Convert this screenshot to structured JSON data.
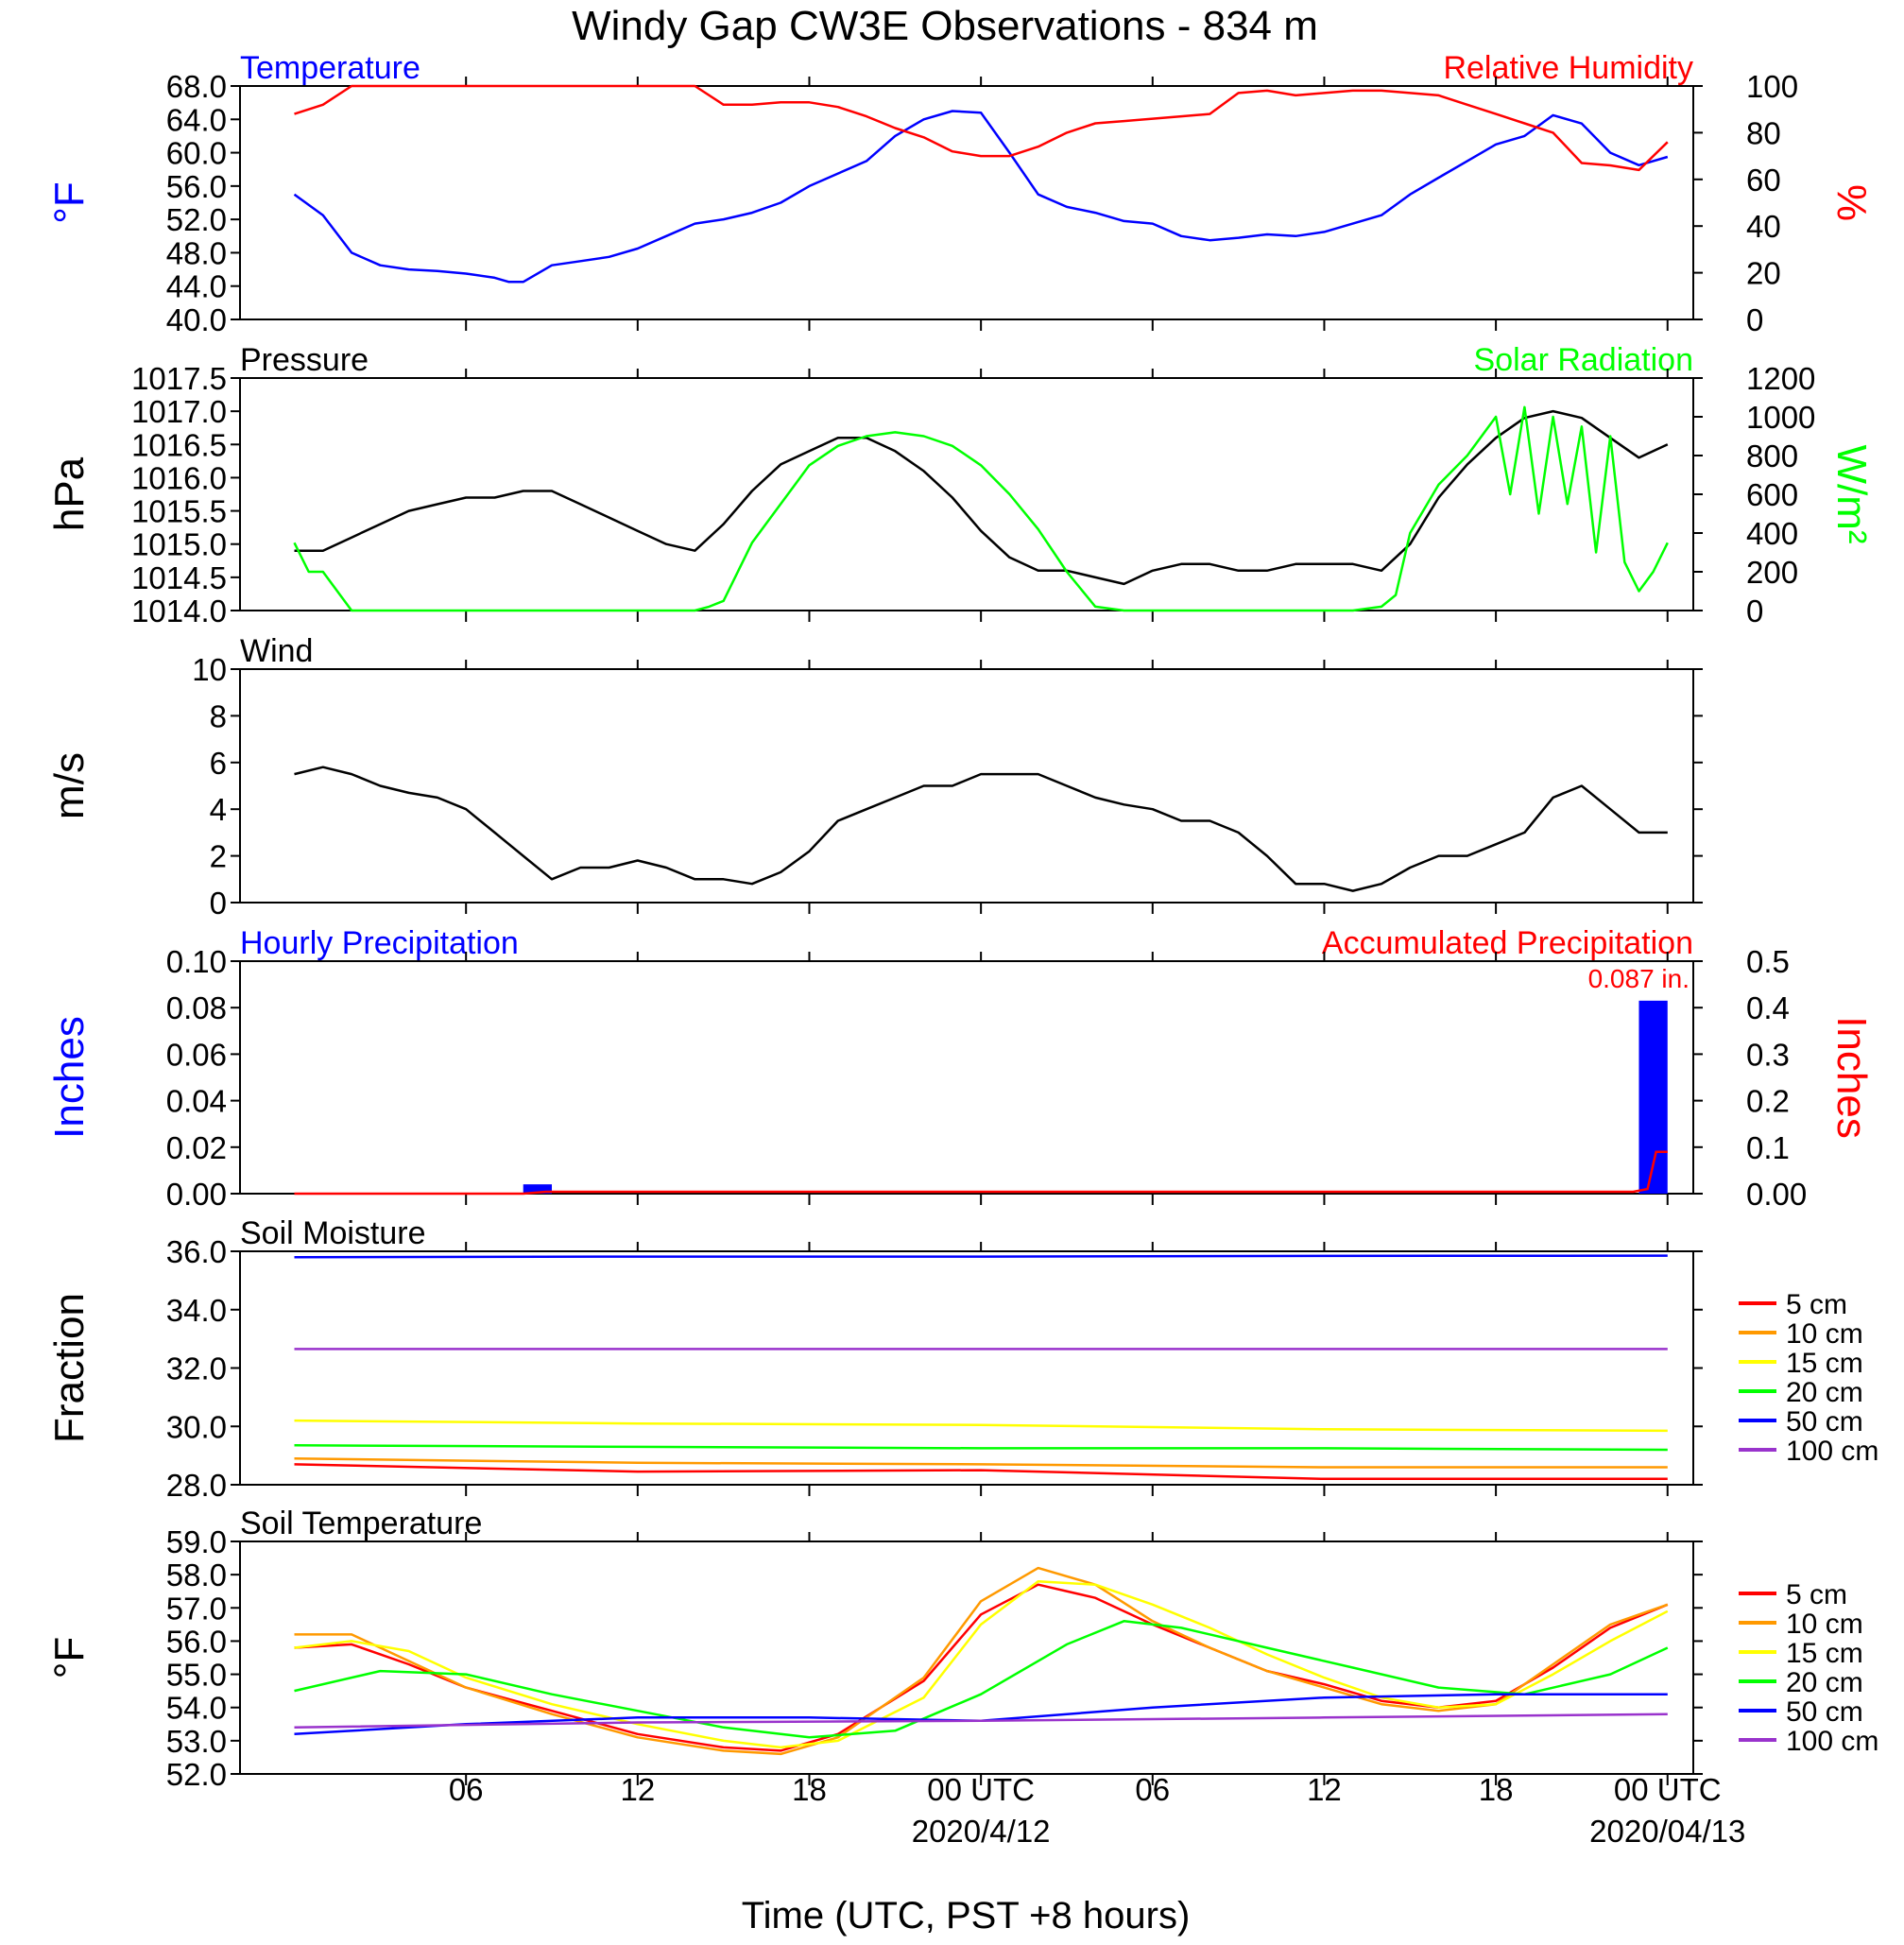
{
  "title": "Windy Gap CW3E Observations - 834 m",
  "xaxis": {
    "title": "Time (UTC, PST +8 hours)",
    "tick_labels": [
      "06",
      "12",
      "18",
      "00 UTC",
      "06",
      "12",
      "18",
      "00 UTC"
    ],
    "date_labels": [
      "2020/4/12",
      "2020/04/13"
    ]
  },
  "chart_data": [
    {
      "type": "line",
      "panel": "temperature_humidity",
      "x_range_hours": [
        0,
        48
      ],
      "left": {
        "label": "Temperature",
        "ylabel": "°F",
        "color": "#0000ff",
        "ylim": [
          40,
          68
        ],
        "ticks": [
          "40.0",
          "44.0",
          "48.0",
          "52.0",
          "56.0",
          "60.0",
          "64.0",
          "68.0"
        ]
      },
      "right": {
        "label": "Relative Humidity",
        "ylabel": "%",
        "color": "#ff0000",
        "ylim": [
          0,
          100
        ],
        "ticks": [
          "0",
          "20",
          "40",
          "60",
          "80",
          "100"
        ]
      },
      "series": [
        {
          "name": "Temperature",
          "axis": "left",
          "color": "#0000ff",
          "x": [
            0,
            1,
            2,
            3,
            4,
            5,
            6,
            7,
            7.5,
            8,
            9,
            10,
            11,
            12,
            13,
            14,
            15,
            16,
            17,
            18,
            19,
            20,
            21,
            22,
            23,
            24,
            25,
            26,
            27,
            28,
            29,
            30,
            31,
            32,
            33,
            34,
            35,
            36,
            37,
            38,
            39,
            40,
            41,
            42,
            43,
            44,
            45,
            46,
            47,
            48
          ],
          "y": [
            55,
            52.5,
            48,
            46.5,
            46,
            45.8,
            45.5,
            45,
            44.5,
            44.5,
            46.5,
            47,
            47.5,
            48.5,
            50,
            51.5,
            52,
            52.8,
            54,
            56,
            57.5,
            59,
            62,
            64,
            65,
            64.8,
            60,
            55,
            53.5,
            52.8,
            51.8,
            51.5,
            50,
            49.5,
            49.8,
            50.2,
            50,
            50.5,
            51.5,
            52.5,
            55,
            57,
            59,
            61,
            62,
            64.5,
            63.5,
            60,
            58.5,
            59.5
          ]
        },
        {
          "name": "Relative Humidity",
          "axis": "right",
          "color": "#ff0000",
          "x": [
            0,
            1,
            2,
            3,
            4,
            5,
            6,
            7,
            8,
            9,
            10,
            11,
            12,
            13,
            14,
            15,
            16,
            17,
            18,
            19,
            20,
            21,
            22,
            23,
            24,
            25,
            26,
            27,
            28,
            29,
            30,
            31,
            32,
            33,
            34,
            35,
            36,
            37,
            38,
            39,
            40,
            41,
            42,
            43,
            44,
            45,
            46,
            47,
            48
          ],
          "y": [
            88,
            92,
            100,
            100,
            100,
            100,
            100,
            100,
            100,
            100,
            100,
            100,
            100,
            100,
            100,
            92,
            92,
            93,
            93,
            91,
            87,
            82,
            78,
            72,
            70,
            70,
            74,
            80,
            84,
            85,
            86,
            87,
            88,
            97,
            98,
            96,
            97,
            98,
            98,
            97,
            96,
            92,
            88,
            84,
            80,
            67,
            66,
            64,
            76
          ]
        }
      ]
    },
    {
      "type": "line",
      "panel": "pressure_solar",
      "x_range_hours": [
        0,
        48
      ],
      "left": {
        "label": "Pressure",
        "ylabel": "hPa",
        "color": "#000000",
        "ylim": [
          1014.0,
          1017.5
        ],
        "ticks": [
          "1014.0",
          "1014.5",
          "1015.0",
          "1015.5",
          "1016.0",
          "1016.5",
          "1017.0",
          "1017.5"
        ]
      },
      "right": {
        "label": "Solar Radiation",
        "ylabel": "W/m²",
        "color": "#00ff00",
        "ylim": [
          0,
          1200
        ],
        "ticks": [
          "0",
          "200",
          "400",
          "600",
          "800",
          "1000",
          "1200"
        ]
      },
      "series": [
        {
          "name": "Pressure",
          "axis": "left",
          "color": "#000000",
          "x": [
            0,
            1,
            2,
            3,
            4,
            5,
            6,
            7,
            8,
            9,
            10,
            11,
            12,
            13,
            14,
            15,
            16,
            17,
            18,
            19,
            20,
            21,
            22,
            23,
            24,
            25,
            26,
            27,
            28,
            29,
            30,
            31,
            32,
            33,
            34,
            35,
            36,
            37,
            38,
            39,
            40,
            41,
            42,
            43,
            44,
            45,
            46,
            47,
            48
          ],
          "y": [
            1014.9,
            1014.9,
            1015.1,
            1015.3,
            1015.5,
            1015.6,
            1015.7,
            1015.7,
            1015.8,
            1015.8,
            1015.6,
            1015.4,
            1015.2,
            1015.0,
            1014.9,
            1015.3,
            1015.8,
            1016.2,
            1016.4,
            1016.6,
            1016.6,
            1016.4,
            1016.1,
            1015.7,
            1015.2,
            1014.8,
            1014.6,
            1014.6,
            1014.5,
            1014.4,
            1014.6,
            1014.7,
            1014.7,
            1014.6,
            1014.6,
            1014.7,
            1014.7,
            1014.7,
            1014.6,
            1015.0,
            1015.7,
            1016.2,
            1016.6,
            1016.9,
            1017.0,
            1016.9,
            1016.6,
            1016.3,
            1016.5
          ]
        },
        {
          "name": "Solar Radiation",
          "axis": "right",
          "color": "#00ff00",
          "x": [
            0,
            0.5,
            1,
            2,
            3,
            6,
            9,
            12,
            14,
            14.5,
            15,
            16,
            17,
            18,
            19,
            20,
            21,
            22,
            23,
            24,
            25,
            26,
            27,
            28,
            29,
            30,
            33,
            36,
            37,
            38,
            38.5,
            39,
            40,
            41,
            41.5,
            42,
            42.5,
            43,
            43.5,
            44,
            44.5,
            45,
            45.5,
            46,
            46.5,
            47,
            47.5,
            48
          ],
          "y": [
            350,
            200,
            200,
            0,
            0,
            0,
            0,
            0,
            0,
            20,
            50,
            350,
            550,
            750,
            850,
            900,
            920,
            900,
            850,
            750,
            600,
            420,
            200,
            20,
            0,
            0,
            0,
            0,
            0,
            20,
            80,
            400,
            650,
            800,
            900,
            1000,
            600,
            1050,
            500,
            1000,
            550,
            950,
            300,
            900,
            250,
            100,
            200,
            350
          ]
        }
      ]
    },
    {
      "type": "line",
      "panel": "wind",
      "x_range_hours": [
        0,
        48
      ],
      "left": {
        "label": "Wind",
        "ylabel": "m/s",
        "color": "#000000",
        "ylim": [
          0,
          10
        ],
        "ticks": [
          "0",
          "2",
          "4",
          "6",
          "8",
          "10"
        ]
      },
      "series": [
        {
          "name": "Wind",
          "axis": "left",
          "color": "#000000",
          "x": [
            0,
            1,
            2,
            3,
            4,
            5,
            6,
            7,
            8,
            9,
            10,
            11,
            12,
            13,
            14,
            15,
            16,
            17,
            18,
            19,
            20,
            21,
            22,
            23,
            24,
            25,
            26,
            27,
            28,
            29,
            30,
            31,
            32,
            33,
            34,
            35,
            36,
            37,
            38,
            39,
            40,
            41,
            42,
            43,
            44,
            45,
            46,
            47,
            48
          ],
          "y": [
            5.5,
            5.8,
            5.5,
            5,
            4.7,
            4.5,
            4,
            3,
            2,
            1,
            1.5,
            1.5,
            1.8,
            1.5,
            1,
            1,
            0.8,
            1.3,
            2.2,
            3.5,
            4,
            4.5,
            5,
            5,
            5.5,
            5.5,
            5.5,
            5,
            4.5,
            4.2,
            4,
            3.5,
            3.5,
            3,
            2,
            0.8,
            0.8,
            0.5,
            0.8,
            1.5,
            2,
            2,
            2.5,
            3,
            4.5,
            5,
            4,
            3,
            3
          ]
        }
      ]
    },
    {
      "type": "bar",
      "panel": "precipitation",
      "x_range_hours": [
        0,
        48
      ],
      "left": {
        "label": "Hourly Precipitation",
        "ylabel": "Inches",
        "color": "#0000ff",
        "ylim": [
          0,
          0.1
        ],
        "ticks": [
          "0.00",
          "0.02",
          "0.04",
          "0.06",
          "0.08",
          "0.10"
        ]
      },
      "right": {
        "label": "Accumulated Precipitation",
        "ylabel": "Inches",
        "color": "#ff0000",
        "ylim": [
          0,
          0.5
        ],
        "ticks": [
          "0.00",
          "0.1",
          "0.2",
          "0.3",
          "0.4",
          "0.5"
        ]
      },
      "annotation": "0.087 in.",
      "bars": [
        {
          "hour": 8,
          "value": 0.004
        },
        {
          "hour": 47,
          "value": 0.083
        }
      ],
      "accumulated": {
        "x": [
          0,
          8,
          8.8,
          46.8,
          47.3,
          47.6,
          48
        ],
        "y": [
          0,
          0,
          0.004,
          0.004,
          0.01,
          0.09,
          0.09
        ]
      }
    },
    {
      "type": "line",
      "panel": "soil_moisture",
      "x_range_hours": [
        0,
        48
      ],
      "left": {
        "label": "Soil Moisture",
        "ylabel": "Fraction",
        "color": "#000000",
        "ylim": [
          28,
          36
        ],
        "ticks": [
          "28.0",
          "30.0",
          "32.0",
          "34.0",
          "36.0"
        ]
      },
      "series": [
        {
          "name": "5 cm",
          "color": "#ff0000",
          "x": [
            0,
            12,
            24,
            36,
            48
          ],
          "y": [
            28.7,
            28.45,
            28.5,
            28.2,
            28.2
          ]
        },
        {
          "name": "10 cm",
          "color": "#ff9900",
          "x": [
            0,
            12,
            24,
            36,
            48
          ],
          "y": [
            28.9,
            28.75,
            28.7,
            28.6,
            28.6
          ]
        },
        {
          "name": "15 cm",
          "color": "#ffff00",
          "x": [
            0,
            12,
            24,
            36,
            48
          ],
          "y": [
            30.2,
            30.1,
            30.05,
            29.9,
            29.85
          ]
        },
        {
          "name": "20 cm",
          "color": "#00ff00",
          "x": [
            0,
            12,
            24,
            36,
            48
          ],
          "y": [
            29.35,
            29.3,
            29.25,
            29.25,
            29.2
          ]
        },
        {
          "name": "50 cm",
          "color": "#0000ff",
          "x": [
            0,
            12,
            24,
            36,
            48
          ],
          "y": [
            35.8,
            35.82,
            35.82,
            35.84,
            35.85
          ]
        },
        {
          "name": "100 cm",
          "color": "#9933cc",
          "x": [
            0,
            12,
            24,
            36,
            48
          ],
          "y": [
            32.65,
            32.65,
            32.65,
            32.65,
            32.65
          ]
        }
      ]
    },
    {
      "type": "line",
      "panel": "soil_temperature",
      "x_range_hours": [
        0,
        48
      ],
      "left": {
        "label": "Soil Temperature",
        "ylabel": "°F",
        "color": "#000000",
        "ylim": [
          52,
          59
        ],
        "ticks": [
          "52.0",
          "53.0",
          "54.0",
          "55.0",
          "56.0",
          "57.0",
          "58.0",
          "59.0"
        ]
      },
      "series": [
        {
          "name": "5 cm",
          "color": "#ff0000",
          "x": [
            0,
            2,
            4,
            6,
            9,
            12,
            15,
            17,
            19,
            22,
            24,
            26,
            28,
            30,
            32,
            34,
            36,
            38,
            40,
            42,
            44,
            46,
            48
          ],
          "y": [
            55.8,
            55.9,
            55.3,
            54.6,
            53.9,
            53.2,
            52.8,
            52.7,
            53.2,
            54.8,
            56.8,
            57.7,
            57.3,
            56.5,
            55.8,
            55.1,
            54.7,
            54.2,
            54.0,
            54.2,
            55.2,
            56.4,
            57.1
          ]
        },
        {
          "name": "10 cm",
          "color": "#ff9900",
          "x": [
            0,
            2,
            4,
            6,
            9,
            12,
            15,
            17,
            19,
            22,
            24,
            26,
            28,
            30,
            32,
            34,
            36,
            38,
            40,
            42,
            44,
            46,
            48
          ],
          "y": [
            56.2,
            56.2,
            55.4,
            54.6,
            53.8,
            53.1,
            52.7,
            52.6,
            53.1,
            54.9,
            57.2,
            58.2,
            57.7,
            56.6,
            55.8,
            55.1,
            54.6,
            54.1,
            53.9,
            54.1,
            55.3,
            56.5,
            57.1
          ]
        },
        {
          "name": "15 cm",
          "color": "#ffff00",
          "x": [
            0,
            2,
            4,
            6,
            9,
            12,
            15,
            17,
            19,
            22,
            24,
            26,
            28,
            30,
            32,
            34,
            36,
            38,
            40,
            42,
            44,
            46,
            48
          ],
          "y": [
            55.8,
            56.0,
            55.7,
            54.9,
            54.1,
            53.5,
            53.0,
            52.8,
            53.0,
            54.3,
            56.5,
            57.8,
            57.7,
            57.1,
            56.4,
            55.6,
            54.9,
            54.3,
            54.0,
            54.1,
            55.0,
            56.0,
            56.9
          ]
        },
        {
          "name": "20 cm",
          "color": "#00ff00",
          "x": [
            0,
            3,
            6,
            9,
            12,
            15,
            18,
            21,
            24,
            27,
            29,
            31,
            34,
            37,
            40,
            43,
            46,
            48
          ],
          "y": [
            54.5,
            55.1,
            55.0,
            54.4,
            53.9,
            53.4,
            53.1,
            53.3,
            54.4,
            55.9,
            56.6,
            56.4,
            55.8,
            55.2,
            54.6,
            54.4,
            55.0,
            55.8
          ]
        },
        {
          "name": "50 cm",
          "color": "#0000ff",
          "x": [
            0,
            6,
            12,
            18,
            24,
            30,
            36,
            42,
            48
          ],
          "y": [
            53.2,
            53.5,
            53.7,
            53.7,
            53.6,
            54.0,
            54.3,
            54.4,
            54.4
          ]
        },
        {
          "name": "100 cm",
          "color": "#9933cc",
          "x": [
            0,
            12,
            24,
            36,
            48
          ],
          "y": [
            53.4,
            53.55,
            53.6,
            53.7,
            53.8
          ]
        }
      ]
    }
  ]
}
